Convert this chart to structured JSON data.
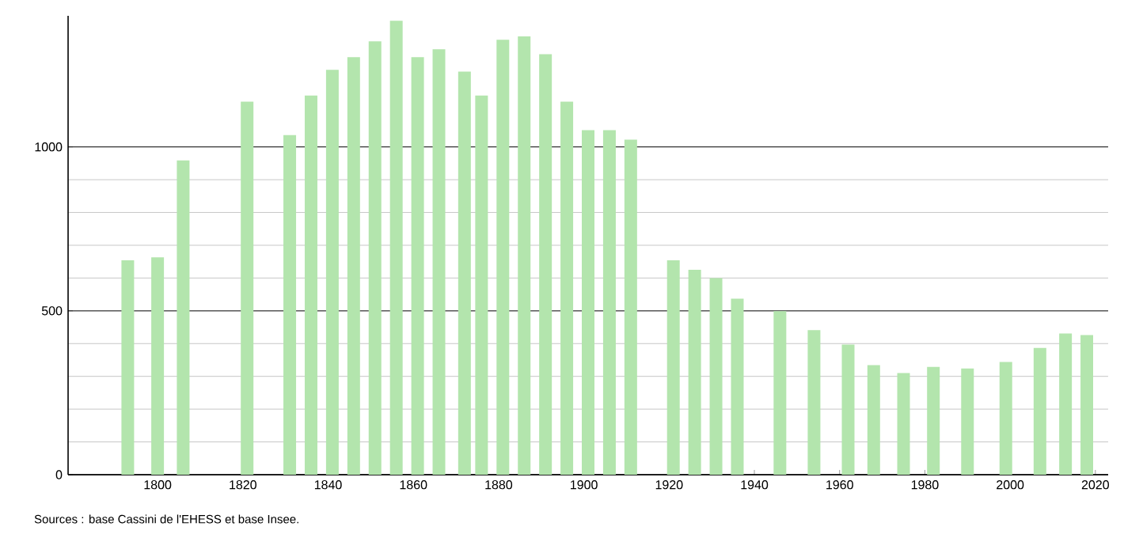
{
  "chart_data": {
    "type": "bar",
    "x": [
      1793,
      1800,
      1806,
      1821,
      1831,
      1836,
      1841,
      1846,
      1851,
      1856,
      1861,
      1866,
      1872,
      1876,
      1881,
      1886,
      1891,
      1896,
      1901,
      1906,
      1911,
      1921,
      1926,
      1931,
      1936,
      1946,
      1954,
      1962,
      1968,
      1975,
      1982,
      1990,
      1999,
      2007,
      2013,
      2018
    ],
    "values": [
      654,
      663,
      959,
      1138,
      1036,
      1157,
      1235,
      1274,
      1322,
      1385,
      1274,
      1298,
      1230,
      1157,
      1327,
      1337,
      1283,
      1138,
      1051,
      1051,
      1022,
      654,
      625,
      600,
      537,
      499,
      441,
      397,
      334,
      310,
      329,
      324,
      344,
      387,
      431,
      426
    ],
    "color": "#b3e5ad",
    "xlim": [
      1779,
      2023
    ],
    "ylim": [
      0,
      1400
    ],
    "xticks": [
      1800,
      1820,
      1840,
      1860,
      1880,
      1900,
      1920,
      1940,
      1960,
      1980,
      2000,
      2020
    ],
    "yticks": [
      0,
      500,
      1000
    ],
    "grid": "y",
    "annotations": [
      "Sources : base Cassini de l'EHESS et base Insee."
    ]
  }
}
